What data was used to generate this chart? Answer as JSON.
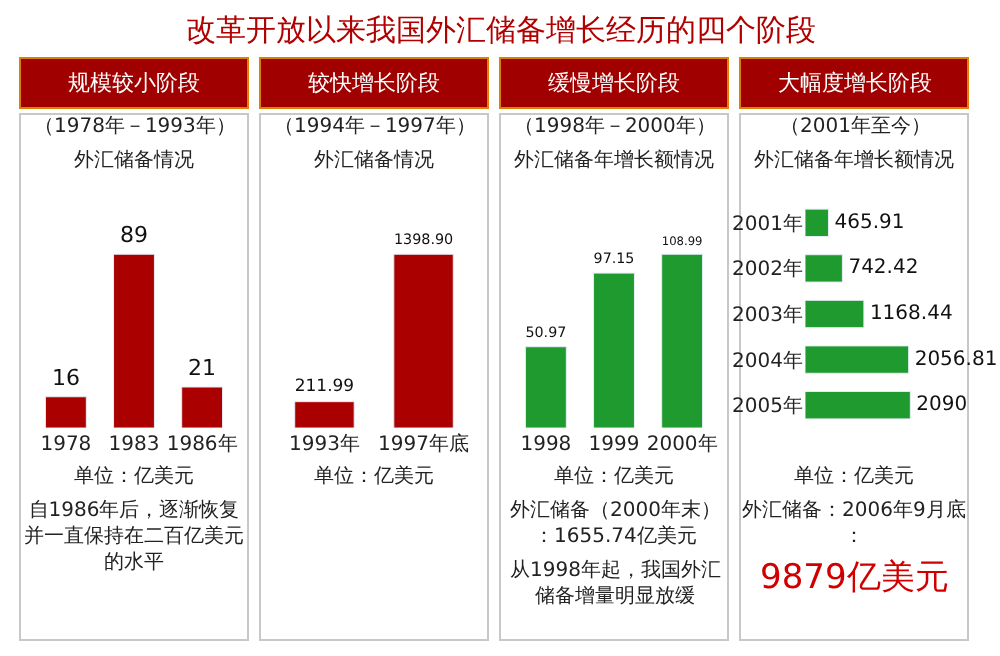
{
  "chart_data": [
    {
      "type": "bar",
      "title": "规模较小阶段",
      "subtitle": "（1978年－1993年）",
      "xlabel": "外汇储备情况",
      "categories": [
        "1978",
        "1983",
        "1986年"
      ],
      "values": [
        16,
        89,
        21
      ],
      "color": "#aa0000",
      "data_labels": true,
      "tick_labels": "x",
      "annotations": [
        "改革开放以来我国外汇储备增长经历的四个阶段",
        "单位：亿美元",
        "自1986年后，逐渐恢复并一直保持在二百亿美元的水平"
      ]
    },
    {
      "type": "bar",
      "title": "较快增长阶段",
      "subtitle": "（1994年－1997年）",
      "xlabel": "外汇储备情况",
      "categories": [
        "1993年",
        "1997年底"
      ],
      "values": [
        211.99,
        1398.9
      ],
      "value_labels": [
        "211.99",
        "1398.90"
      ],
      "color": "#aa0000",
      "tick_labels": "x",
      "annotations": [
        "单位：亿美元"
      ]
    },
    {
      "type": "bar",
      "title": "缓慢增长阶段",
      "subtitle": "（1998年－2000年）",
      "xlabel": "外汇储备年增长额情况",
      "categories": [
        "1998",
        "1999",
        "2000年"
      ],
      "values": [
        50.97,
        97.15,
        108.99
      ],
      "color": "#1e9a2e",
      "data_labels": true,
      "tick_labels": "x",
      "annotations": [
        "单位：亿美元",
        "外汇储备（2000年末）：1655.74亿美元",
        "从1998年起，我国外汇储备增量明显放缓"
      ]
    },
    {
      "type": "bar",
      "orientation": "horizontal",
      "title": "大幅度增长阶段",
      "subtitle": "（2001年至今）",
      "xlabel": "外汇储备年增长额情况",
      "categories": [
        "2001年",
        "2002年",
        "2003年",
        "2004年",
        "2005年"
      ],
      "values": [
        465.91,
        742.42,
        1168.44,
        2056.81,
        2090
      ],
      "color": "#1e9a2e",
      "data_labels": true,
      "tick_labels": "y",
      "annotations": [
        "单位：亿美元",
        "外汇储备：2006年9月底：",
        "9879亿美元"
      ]
    }
  ]
}
